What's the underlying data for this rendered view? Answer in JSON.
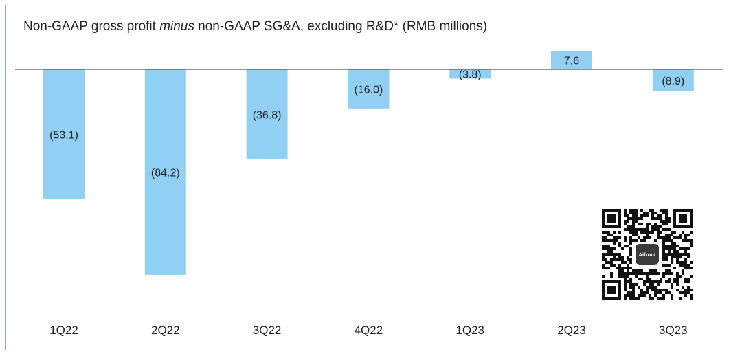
{
  "chart_data": {
    "type": "bar",
    "title_parts": {
      "before": "Non-GAAP gross profit ",
      "italic": "minus",
      "after": " non-GAAP SG&A, excluding R&D* (RMB millions)"
    },
    "categories": [
      "1Q22",
      "2Q22",
      "3Q22",
      "4Q22",
      "1Q23",
      "2Q23",
      "3Q23"
    ],
    "values": [
      -53.1,
      -84.2,
      -36.8,
      -16.0,
      -3.8,
      7.6,
      -8.9
    ],
    "labels": [
      "(53.1)",
      "(84.2)",
      "(36.8)",
      "(16.0)",
      "(3.8)",
      "7.6",
      "(8.9)"
    ],
    "bar_color": "#92d0f3",
    "axis_color": "#555555",
    "grid": false,
    "legend": "none"
  },
  "qr": {
    "icon": "qr-code-icon",
    "badge_text": "Aifront"
  }
}
